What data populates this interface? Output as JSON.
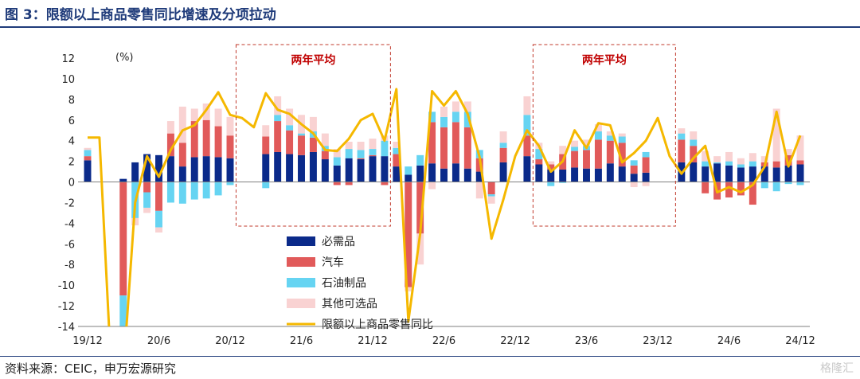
{
  "title": "图 3：限额以上商品零售同比增速及分项拉动",
  "source": "资料来源：CEIC，申万宏源研究",
  "watermark": "格隆汇",
  "chart_data": {
    "type": "bar",
    "stacked": true,
    "unit_label": "(%)",
    "ylim": [
      -14,
      12
    ],
    "y_ticks": [
      -14,
      -12,
      -10,
      -8,
      -6,
      -4,
      -2,
      0,
      2,
      4,
      6,
      8,
      10,
      12
    ],
    "x_tick_labels": [
      {
        "label": "19/12",
        "index": 0
      },
      {
        "label": "20/6",
        "index": 6
      },
      {
        "label": "20/12",
        "index": 12
      },
      {
        "label": "21/6",
        "index": 18
      },
      {
        "label": "21/12",
        "index": 24
      },
      {
        "label": "22/6",
        "index": 30
      },
      {
        "label": "22/12",
        "index": 36
      },
      {
        "label": "23/6",
        "index": 42
      },
      {
        "label": "23/12",
        "index": 48
      },
      {
        "label": "24/6",
        "index": 54
      },
      {
        "label": "24/12",
        "index": 60
      }
    ],
    "categories": [
      "19/12",
      "20/1",
      "20/2",
      "20/3",
      "20/4",
      "20/5",
      "20/6",
      "20/7",
      "20/8",
      "20/9",
      "20/10",
      "20/11",
      "20/12",
      "21/1",
      "21/2",
      "21/3",
      "21/4",
      "21/5",
      "21/6",
      "21/7",
      "21/8",
      "21/9",
      "21/10",
      "21/11",
      "21/12",
      "22/1",
      "22/2",
      "22/3",
      "22/4",
      "22/5",
      "22/6",
      "22/7",
      "22/8",
      "22/9",
      "22/10",
      "22/11",
      "22/12",
      "23/1",
      "23/2",
      "23/3",
      "23/4",
      "23/5",
      "23/6",
      "23/7",
      "23/8",
      "23/9",
      "23/10",
      "23/11",
      "23/12",
      "24/1",
      "24/2",
      "24/3",
      "24/4",
      "24/5",
      "24/6",
      "24/7",
      "24/8",
      "24/9",
      "24/10",
      "24/11",
      "24/12"
    ],
    "series": [
      {
        "name": "必需品",
        "color": "#0b2a8a",
        "values": [
          2.1,
          null,
          null,
          0.3,
          1.9,
          2.7,
          2.6,
          2.5,
          1.5,
          2.4,
          2.5,
          2.4,
          2.3,
          null,
          null,
          2.7,
          2.9,
          2.7,
          2.6,
          2.9,
          2.2,
          1.6,
          2.3,
          2.2,
          2.5,
          2.5,
          1.5,
          0.7,
          1.6,
          1.8,
          1.3,
          1.8,
          1.3,
          1.0,
          null,
          1.9,
          null,
          2.5,
          1.7,
          1.2,
          1.2,
          1.4,
          1.3,
          1.3,
          1.8,
          1.5,
          0.8,
          0.9,
          null,
          null,
          1.9,
          1.9,
          1.5,
          1.8,
          1.6,
          1.4,
          1.5,
          1.5,
          1.4,
          1.6,
          1.7
        ]
      },
      {
        "name": "汽车",
        "color": "#e15a5a",
        "values": [
          0.4,
          null,
          null,
          -11.0,
          null,
          -1.0,
          -2.8,
          2.2,
          2.3,
          3.5,
          3.5,
          3.0,
          2.2,
          null,
          null,
          1.7,
          3.0,
          2.3,
          1.9,
          1.4,
          0.8,
          -0.3,
          -0.3,
          0.1,
          0.1,
          -0.3,
          1.2,
          -10.2,
          -5.0,
          4.0,
          4.0,
          4.0,
          4.0,
          1.3,
          -1.2,
          1.4,
          null,
          2.0,
          0.5,
          0.5,
          1.5,
          1.6,
          1.8,
          2.8,
          2.2,
          2.3,
          0.8,
          1.5,
          null,
          null,
          2.2,
          1.6,
          -1.1,
          -1.7,
          -1.5,
          -1.3,
          -2.2,
          0.4,
          0.6,
          1.0,
          0.4
        ]
      },
      {
        "name": "石油制品",
        "color": "#66d4f2",
        "values": [
          0.6,
          null,
          null,
          -3.5,
          -3.5,
          -1.5,
          -1.6,
          -2.0,
          -2.1,
          -1.7,
          -1.6,
          -1.3,
          -0.3,
          null,
          null,
          -0.6,
          0.6,
          0.5,
          0.2,
          0.6,
          0.5,
          0.8,
          0.9,
          0.8,
          0.6,
          1.5,
          0.6,
          0.8,
          1.0,
          1.0,
          1.0,
          1.0,
          1.5,
          0.8,
          -0.2,
          0.5,
          null,
          2.0,
          1.0,
          -0.4,
          -0.1,
          0.4,
          0.4,
          0.8,
          0.5,
          0.6,
          0.5,
          0.5,
          null,
          null,
          0.6,
          0.6,
          0.5,
          0.1,
          0.4,
          0.3,
          0.5,
          -0.6,
          -0.9,
          -0.2,
          -0.3
        ]
      },
      {
        "name": "其他可选品",
        "color": "#f9d2d2",
        "values": [
          0.2,
          null,
          null,
          0.0,
          -0.7,
          -0.5,
          -0.5,
          1.2,
          3.5,
          1.2,
          1.6,
          1.7,
          1.8,
          null,
          null,
          1.1,
          1.8,
          1.6,
          1.8,
          1.4,
          1.2,
          0.8,
          0.7,
          0.8,
          1.0,
          0.5,
          0.6,
          -0.4,
          -3.0,
          -0.7,
          1.0,
          1.0,
          1.0,
          -1.6,
          -0.7,
          1.1,
          null,
          1.8,
          0.6,
          0.3,
          0.8,
          0.6,
          0.6,
          0.7,
          0.4,
          0.3,
          -0.5,
          -0.4,
          null,
          null,
          0.5,
          0.8,
          1.0,
          0.6,
          0.9,
          0.6,
          0.8,
          0.6,
          5.1,
          0.6,
          2.4
        ]
      },
      {
        "name": "限额以上商品零售同比",
        "color": "#f5b800",
        "type": "line",
        "values": [
          4.3,
          4.3,
          -18.5,
          -18.5,
          -2.0,
          2.5,
          0.5,
          3.1,
          5.0,
          5.5,
          7.0,
          8.7,
          6.5,
          6.2,
          5.3,
          8.6,
          7.0,
          6.6,
          5.6,
          4.7,
          3.1,
          3.0,
          4.2,
          6.0,
          6.6,
          4.0,
          9.0,
          -13.5,
          -5.0,
          8.8,
          7.4,
          8.8,
          6.6,
          2.4,
          -5.5,
          -1.7,
          2.5,
          5.0,
          3.5,
          1.0,
          2.0,
          5.0,
          3.3,
          5.7,
          5.5,
          1.9,
          2.8,
          4.0,
          6.2,
          2.5,
          0.8,
          2.3,
          3.5,
          -1.0,
          -0.5,
          -1.0,
          -0.3,
          1.5,
          6.8,
          1.5,
          4.5
        ]
      }
    ],
    "annotations": [
      {
        "text": "两年平均",
        "from_index": 13,
        "to_index": 25
      },
      {
        "text": "两年平均",
        "from_index": 38,
        "to_index": 49
      }
    ],
    "legend_position": "bottom-center",
    "grid": false
  }
}
